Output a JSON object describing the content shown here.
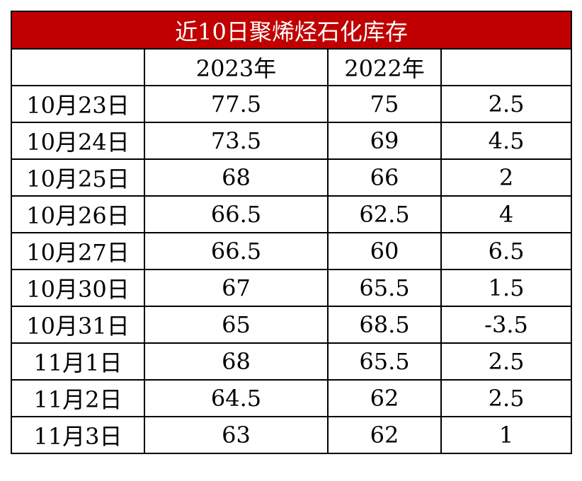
{
  "table": {
    "title": "近10日聚烯烃石化库存",
    "header": [
      "2023年",
      "2022年"
    ],
    "rows": [
      [
        "10月23日",
        "77.5",
        "75",
        "2.5"
      ],
      [
        "10月24日",
        "73.5",
        "69",
        "4.5"
      ],
      [
        "10月25日",
        "68",
        "66",
        "2"
      ],
      [
        "10月26日",
        "66.5",
        "62.5",
        "4"
      ],
      [
        "10月27日",
        "66.5",
        "60",
        "6.5"
      ],
      [
        "10月30日",
        "67",
        "65.5",
        "1.5"
      ],
      [
        "10月31日",
        "65",
        "68.5",
        "-3.5"
      ],
      [
        "11月1日",
        "68",
        "65.5",
        "2.5"
      ],
      [
        "11月2日",
        "64.5",
        "62",
        "2.5"
      ],
      [
        "11月3日",
        "63",
        "62",
        "1"
      ]
    ]
  }
}
